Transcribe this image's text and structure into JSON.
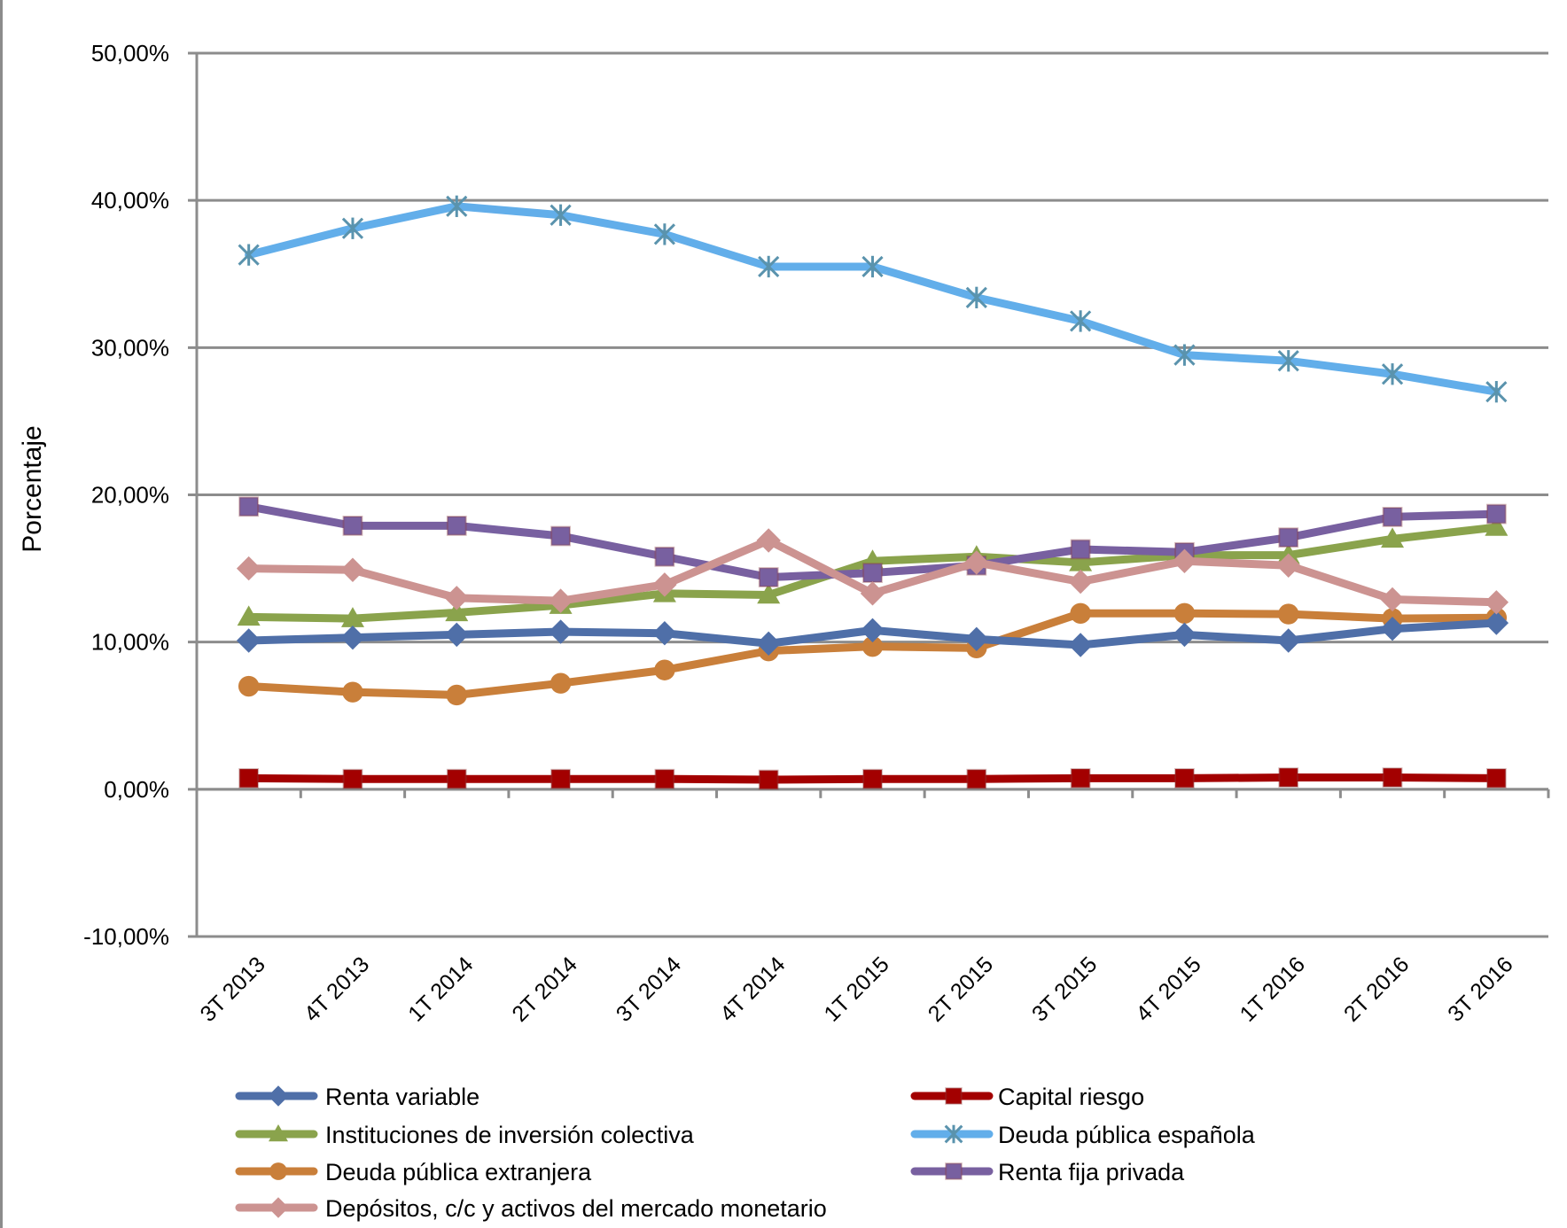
{
  "chart_data": {
    "type": "line",
    "title": "",
    "xlabel": "",
    "ylabel": "Porcentaje",
    "ylim": [
      -10,
      50
    ],
    "yticks": [
      -10,
      0,
      10,
      20,
      30,
      40,
      50
    ],
    "ytick_labels": [
      "-10,00%",
      "0,00%",
      "10,00%",
      "20,00%",
      "30,00%",
      "40,00%",
      "50,00%"
    ],
    "grid": "horizontal",
    "legend_position": "bottom",
    "categories": [
      "3T 2013",
      "4T 2013",
      "1T 2014",
      "2T 2014",
      "3T 2014",
      "4T 2014",
      "1T 2015",
      "2T 2015",
      "3T 2015",
      "4T 2015",
      "1T 2016",
      "2T 2016",
      "3T 2016"
    ],
    "series": [
      {
        "name": "Renta variable",
        "color": "#4f6fa8",
        "marker": "diamond",
        "marker_color": "#4f6fa8",
        "values": [
          10.1,
          10.3,
          10.5,
          10.7,
          10.6,
          9.9,
          10.8,
          10.2,
          9.8,
          10.5,
          10.1,
          10.9,
          11.3
        ]
      },
      {
        "name": "Capital riesgo",
        "color": "#a30000",
        "marker": "square",
        "marker_color": "#a30000",
        "values": [
          0.75,
          0.7,
          0.7,
          0.7,
          0.7,
          0.65,
          0.7,
          0.7,
          0.75,
          0.75,
          0.8,
          0.8,
          0.75
        ]
      },
      {
        "name": "Instituciones de inversión colectiva",
        "color": "#8aa34c",
        "marker": "triangle",
        "marker_color": "#8aa34c",
        "values": [
          11.7,
          11.6,
          12.0,
          12.5,
          13.3,
          13.2,
          15.5,
          15.8,
          15.4,
          15.9,
          15.9,
          17.0,
          17.8
        ]
      },
      {
        "name": "Deuda pública española",
        "color": "#62aeea",
        "marker": "star",
        "marker_color": "#5a93ad",
        "values": [
          36.3,
          38.1,
          39.6,
          39.0,
          37.7,
          35.5,
          35.5,
          33.4,
          31.8,
          29.5,
          29.1,
          28.2,
          27.0
        ]
      },
      {
        "name": "Deuda pública extranjera",
        "color": "#c97f3a",
        "marker": "circle",
        "marker_color": "#c97f3a",
        "values": [
          7.0,
          6.6,
          6.4,
          7.2,
          8.1,
          9.4,
          9.7,
          9.6,
          11.95,
          11.95,
          11.9,
          11.6,
          11.65
        ]
      },
      {
        "name": "Renta fija privada",
        "color": "#7860a0",
        "marker": "square",
        "marker_color": "#7860a0",
        "values": [
          19.2,
          17.9,
          17.9,
          17.2,
          15.8,
          14.4,
          14.7,
          15.2,
          16.3,
          16.1,
          17.1,
          18.5,
          18.7
        ]
      },
      {
        "name": "Depósitos, c/c y activos del mercado monetario",
        "color": "#cc9391",
        "marker": "diamond",
        "marker_color": "#cc9391",
        "values": [
          15.0,
          14.9,
          13.0,
          12.8,
          13.9,
          16.9,
          13.3,
          15.4,
          14.1,
          15.5,
          15.2,
          12.9,
          12.7
        ]
      }
    ],
    "draw_order": [
      1,
      2,
      4,
      0,
      5,
      6,
      3
    ]
  }
}
